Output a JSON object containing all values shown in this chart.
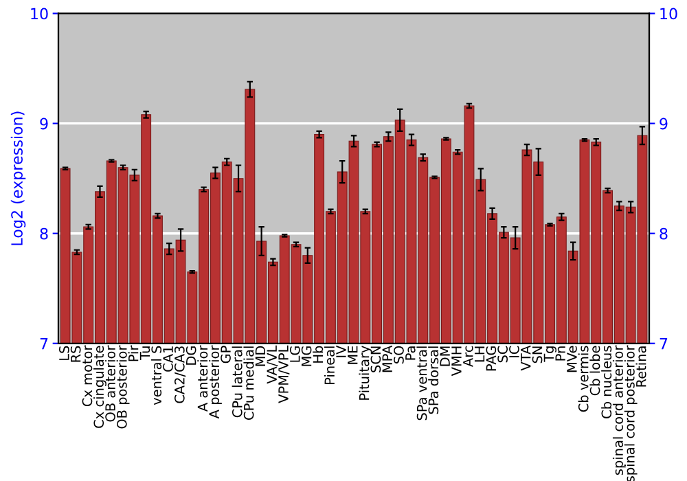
{
  "chart_data": {
    "type": "bar",
    "ylabel": "Log2 (expression)",
    "categories": [
      "LS",
      "RS",
      "Cx motor",
      "Cx cingulate",
      "OB anterior",
      "OB posterior",
      "Pir",
      "Tu",
      "ventral S",
      "CA1",
      "CA2/CA3",
      "DG",
      "A anterior",
      "A posterior",
      "GP",
      "CPu lateral",
      "CPu medial",
      "MD",
      "VA/VL",
      "VPM/VPL",
      "LG",
      "MG",
      "Hb",
      "Pineal",
      "IV",
      "ME",
      "Pituitary",
      "SCN",
      "MPA",
      "SO",
      "Pa",
      "SPa ventral",
      "SPa dorsal",
      "DM",
      "VMH",
      "Arc",
      "LH",
      "PAG",
      "SC",
      "IC",
      "VTA",
      "SN",
      "Tg",
      "Pn",
      "MVe",
      "Cb vermis",
      "Cb lobe",
      "Cb nucleus",
      "spinal cord anterior",
      "spinal cord posterior",
      "Retina"
    ],
    "values": [
      8.59,
      7.83,
      8.06,
      8.38,
      8.66,
      8.6,
      8.53,
      9.08,
      8.16,
      7.86,
      7.94,
      7.65,
      8.4,
      8.55,
      8.65,
      8.5,
      9.31,
      7.93,
      7.74,
      7.98,
      7.9,
      7.8,
      8.9,
      8.2,
      8.56,
      8.84,
      8.2,
      8.81,
      8.88,
      9.03,
      8.85,
      8.69,
      8.51,
      8.86,
      8.74,
      9.16,
      8.49,
      8.18,
      8.01,
      7.96,
      8.76,
      8.65,
      8.08,
      8.15,
      7.84,
      8.85,
      8.83,
      8.39,
      8.25,
      8.24,
      8.89
    ],
    "errors": [
      0.01,
      0.02,
      0.02,
      0.05,
      0.01,
      0.02,
      0.05,
      0.03,
      0.02,
      0.05,
      0.1,
      0.01,
      0.02,
      0.05,
      0.03,
      0.12,
      0.07,
      0.13,
      0.03,
      0.01,
      0.02,
      0.07,
      0.03,
      0.02,
      0.1,
      0.05,
      0.02,
      0.02,
      0.04,
      0.1,
      0.05,
      0.03,
      0.01,
      0.01,
      0.02,
      0.02,
      0.1,
      0.05,
      0.05,
      0.1,
      0.05,
      0.12,
      0.01,
      0.03,
      0.08,
      0.01,
      0.03,
      0.02,
      0.04,
      0.05,
      0.08
    ],
    "color": "#b83232",
    "ylim": [
      7,
      10
    ],
    "yticks": [
      7,
      8,
      9,
      10
    ],
    "y2lim": [
      7,
      10
    ],
    "y2ticks": [
      7,
      8,
      9,
      10
    ],
    "grid": "y"
  }
}
